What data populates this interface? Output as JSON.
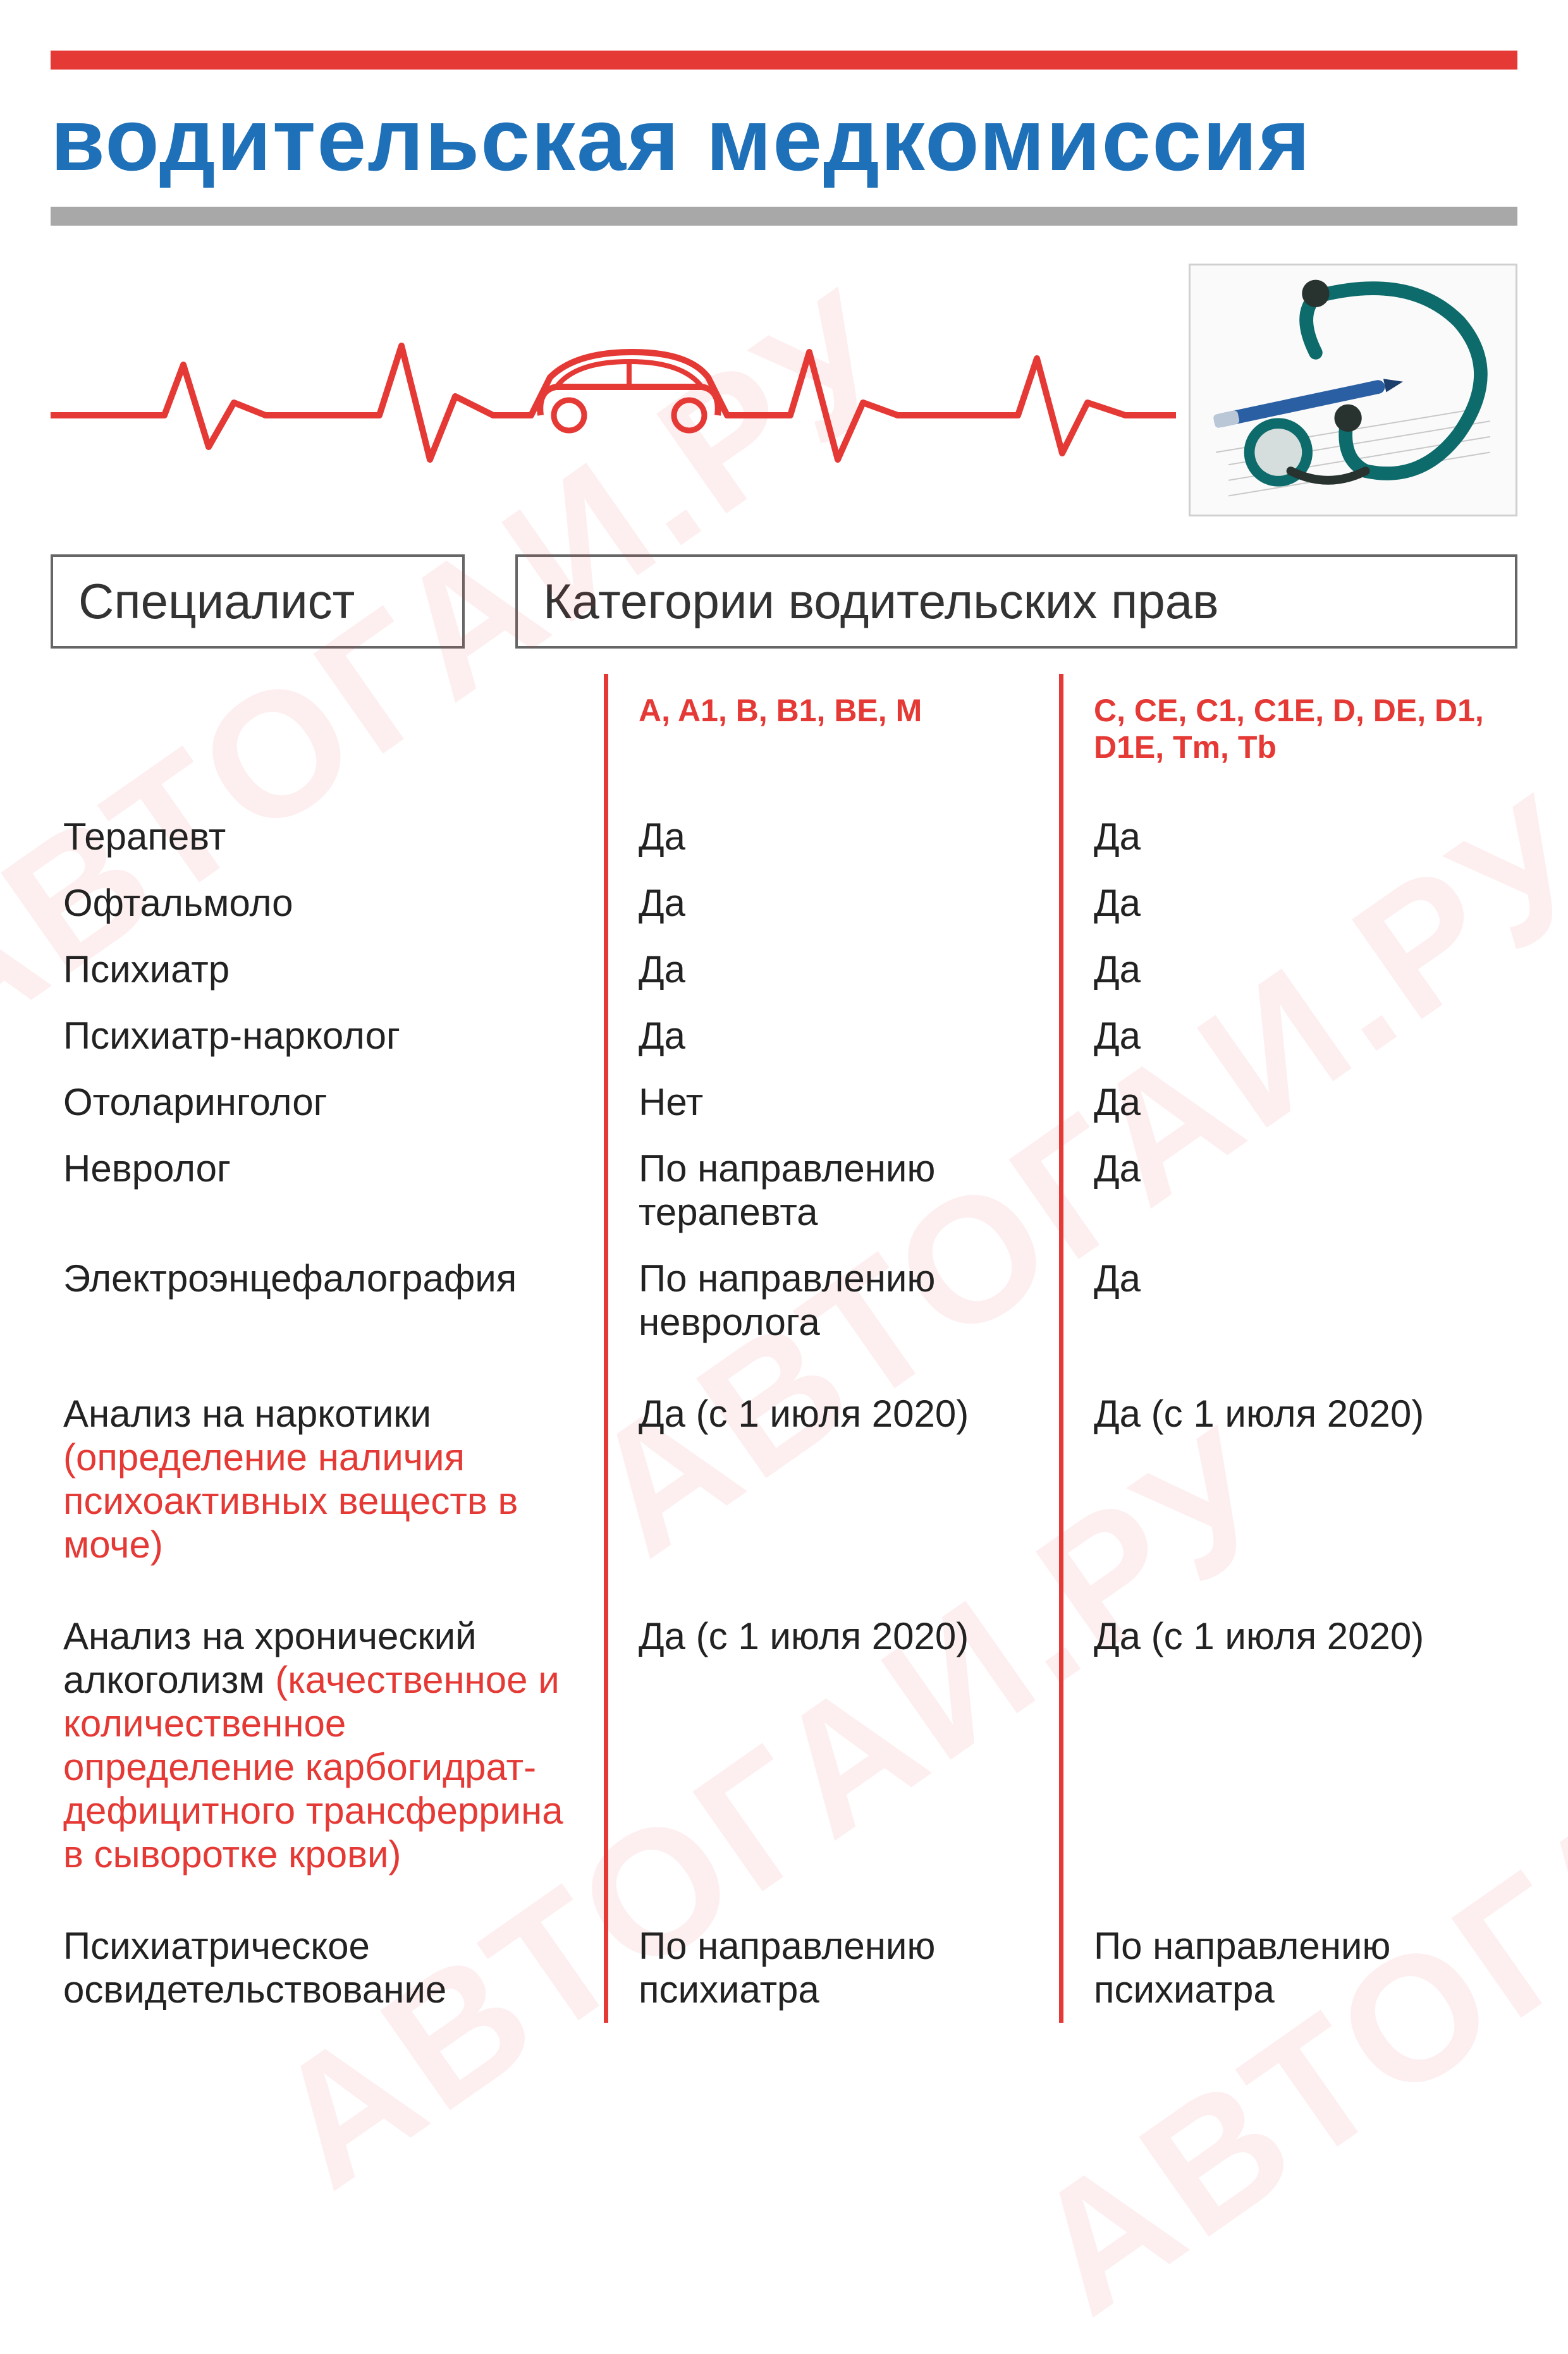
{
  "page": {
    "title": "водительская медкомиссия",
    "watermark_text": "АВТОГАИ.РУ",
    "colors": {
      "accent_red": "#e53935",
      "title_blue": "#1e70b8",
      "grey_bar": "#a8a8a8",
      "pill_border": "#666666",
      "text": "#222222",
      "watermark": "rgba(230,50,50,0.08)",
      "background": "#ffffff"
    }
  },
  "headers": {
    "specialist": "Специалист",
    "categories": "Категории водительских прав",
    "cat_a": "A, A1, B, B1, BE, M",
    "cat_c": "C, CE, C1, C1E, D, DE, D1, D1E, Tm, Tb"
  },
  "rows": [
    {
      "name": "Терапевт",
      "sub": "",
      "a": "Да",
      "b": "Да"
    },
    {
      "name": "Офтальмоло",
      "sub": "",
      "a": "Да",
      "b": "Да"
    },
    {
      "name": "Психиатр",
      "sub": "",
      "a": "Да",
      "b": "Да"
    },
    {
      "name": "Психиатр-нарколог",
      "sub": "",
      "a": "Да",
      "b": "Да"
    },
    {
      "name": "Отоларинголог",
      "sub": "",
      "a": "Нет",
      "b": "Да"
    },
    {
      "name": "Невролог",
      "sub": "",
      "a": "По направлению терапевта",
      "b": "Да"
    },
    {
      "name": "Электроэнцефалография",
      "sub": "",
      "a": "По направлению невролога",
      "b": "Да"
    },
    {
      "name": "Анализ на наркотики",
      "sub": "(определение наличия психоактивных веществ в моче)",
      "a": "Да (с 1 июля 2020)",
      "b": "Да (с 1 июля 2020)",
      "spacer_before": true
    },
    {
      "name": "Анализ на хронический алкоголизм",
      "sub": "(качественное и количественное определение карбогидрат-дефицитного трансферрина в сыворотке крови)",
      "a": "Да (с 1 июля 2020)",
      "b": "Да (с 1 июля 2020)",
      "spacer_before": true
    },
    {
      "name": "Психиатрическое освидетельствование",
      "sub": "",
      "a": "По направлению психиатра",
      "b": "По направлению психиатра",
      "spacer_before": true
    }
  ]
}
